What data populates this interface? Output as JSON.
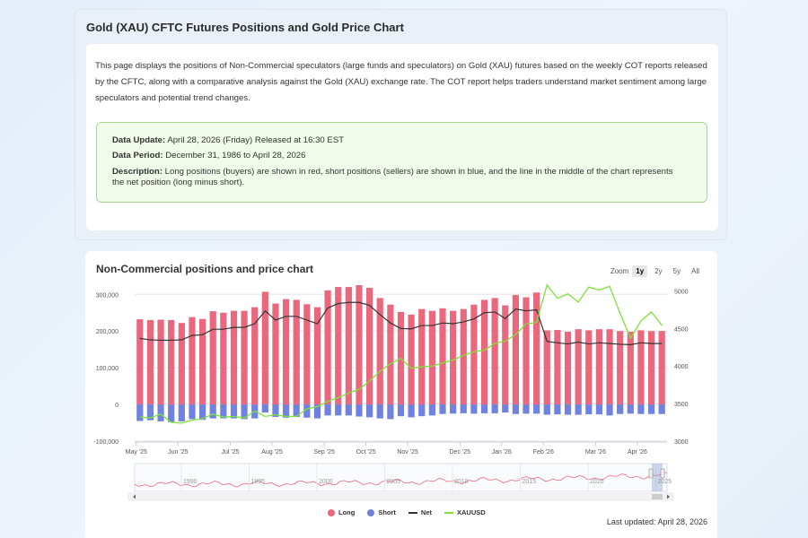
{
  "header": {
    "title": "Gold (XAU) CFTC Futures Positions and Gold Price Chart",
    "intro": "This page displays the positions of Non-Commercial speculators (large funds and speculators) on Gold (XAU) futures based on the weekly COT reports released by the CFTC, along with a comparative analysis against the Gold (XAU) exchange rate. The COT report helps traders understand market sentiment among large speculators and potential trend changes."
  },
  "info": {
    "update_label": "Data Update:",
    "update_value": "April 28, 2026 (Friday) Released at 16:30 EST",
    "period_label": "Data Period:",
    "period_value": "December 31, 1986 to April 28, 2026",
    "desc_label": "Description:",
    "desc_value": "Long positions (buyers) are shown in red, short positions (sellers) are shown in blue, and the line in the middle of the chart represents the net position (long minus short)."
  },
  "chart_section": {
    "title": "Non-Commercial positions and price chart",
    "zoom_label": "Zoom",
    "zoom_options": [
      "1y",
      "2y",
      "5y",
      "All"
    ],
    "zoom_selected": "1y",
    "last_updated": "Last updated: April 28, 2026"
  },
  "colors": {
    "long": "#e9687e",
    "short": "#6f82df",
    "net": "#333333",
    "price": "#7ee23a"
  },
  "chart_data": {
    "type": "bar",
    "x_labels": [
      "May '25",
      "Jun '25",
      "Jul '25",
      "Aug '25",
      "Sep '25",
      "Oct '25",
      "Nov '25",
      "Dec '25",
      "Jan '26",
      "Feb '26",
      "Mar '26",
      "Apr '26"
    ],
    "y_left_ticks": [
      "300,000",
      "200,000",
      "100,000",
      "0",
      "-100,000"
    ],
    "y_left_range": [
      -100000,
      330000
    ],
    "y_right_ticks": [
      "5000",
      "4500",
      "4000",
      "3500",
      "3000"
    ],
    "y_right_range": [
      3000,
      5100
    ],
    "series": [
      {
        "name": "Long",
        "values": [
          232000,
          230000,
          231000,
          230000,
          222000,
          238000,
          233000,
          254000,
          250000,
          255000,
          255000,
          265000,
          307000,
          275000,
          287000,
          285000,
          273000,
          265000,
          311000,
          320000,
          320000,
          325000,
          318000,
          290000,
          272000,
          252000,
          245000,
          260000,
          255000,
          262000,
          255000,
          260000,
          272000,
          285000,
          290000,
          270000,
          298000,
          292000,
          305000,
          202000,
          203000,
          198000,
          205000,
          202000,
          205000,
          205000,
          200000,
          198000,
          202000,
          200000,
          200000
        ]
      },
      {
        "name": "Short",
        "values": [
          -45000,
          -43000,
          -46000,
          -48000,
          -46000,
          -40000,
          -42000,
          -38000,
          -38000,
          -38000,
          -40000,
          -38000,
          -22000,
          -34000,
          -36000,
          -34000,
          -36000,
          -38000,
          -30000,
          -30000,
          -30000,
          -33000,
          -35000,
          -38000,
          -40000,
          -32000,
          -35000,
          -32000,
          -30000,
          -26000,
          -25000,
          -24000,
          -25000,
          -24000,
          -24000,
          -22000,
          -26000,
          -25000,
          -25000,
          -28000,
          -27000,
          -28000,
          -28000,
          -27000,
          -27000,
          -30000,
          -26000,
          -25000,
          -26000,
          -26000,
          -26000
        ]
      },
      {
        "name": "Net",
        "values": [
          180000,
          176000,
          175000,
          175000,
          176000,
          188000,
          190000,
          205000,
          205000,
          210000,
          210000,
          220000,
          255000,
          230000,
          240000,
          240000,
          230000,
          220000,
          263000,
          275000,
          278000,
          278000,
          270000,
          245000,
          222000,
          207000,
          206000,
          215000,
          215000,
          222000,
          220000,
          225000,
          233000,
          250000,
          252000,
          234000,
          260000,
          255000,
          258000,
          172000,
          168000,
          165000,
          170000,
          165000,
          168000,
          166000,
          164000,
          163000,
          168000,
          166000,
          166000
        ]
      },
      {
        "name": "XAUUSD",
        "values": [
          3320,
          3310,
          3360,
          3250,
          3240,
          3280,
          3300,
          3360,
          3320,
          3330,
          3310,
          3400,
          3330,
          3350,
          3330,
          3330,
          3430,
          3460,
          3530,
          3580,
          3640,
          3690,
          3800,
          3930,
          4030,
          4100,
          3970,
          3990,
          4000,
          4040,
          4080,
          4140,
          4190,
          4210,
          4300,
          4330,
          4420,
          4560,
          4580,
          5080,
          4900,
          4960,
          4850,
          5050,
          5010,
          5060,
          4700,
          4370,
          4600,
          4720,
          4540
        ]
      }
    ],
    "navigator": {
      "labels": [
        "1990",
        "1995",
        "2000",
        "2005",
        "2010",
        "2015",
        "2020",
        "2025"
      ]
    },
    "legend": [
      "Long",
      "Short",
      "Net",
      "XAUUSD"
    ],
    "legend_position": "bottom-center"
  }
}
